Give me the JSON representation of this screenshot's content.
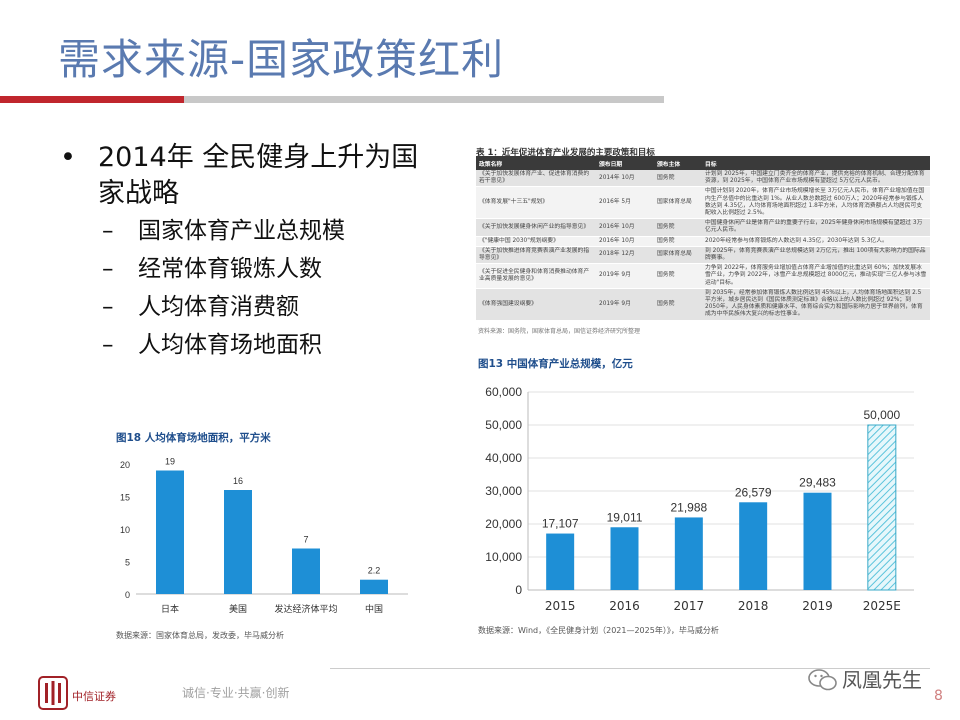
{
  "slide": {
    "title": "需求来源-国家政策红利",
    "page_number": "8"
  },
  "bullets": {
    "main": "2014年 全民健身上升为国家战略",
    "subs": [
      "国家体育产业总规模",
      "经常体育锻炼人数",
      "人均体育消费额",
      "人均体育场地面积"
    ]
  },
  "policy_table": {
    "title": "表 1：近年促进体育产业发展的主要政策和目标",
    "headers": [
      "政策名称",
      "颁布日期",
      "颁布主体",
      "目标"
    ],
    "rows": [
      [
        "《关于加快发展体育产业、促进体育消费的若干意见》",
        "2014年 10月",
        "国务院",
        "计划到 2025年，中国建立门类齐全的体育产业，提供充裕的体育机制、合理分配体育资源，到 2025年，中国体育产业市场规模有望超过 5万亿元人民币。"
      ],
      [
        "《体育发展\"十三五\"规划》",
        "2016年 5月",
        "国家体育总局",
        "中国计划到 2020年，体育产业市场规模增长至 3万亿元人民币，体育产业增加值在国内生产总值中的比重达到 1%。从业人数总数超过 600万人；2020年经常参与锻炼人数达到 4.35亿，人均体育场地面积超过 1.8平方米，人均体育消费额占人均居民可支配收入比例超过 2.5%。"
      ],
      [
        "《关于加快发展健身休闲产业的指导意见》",
        "2016年 10月",
        "国务院",
        "中国健身休闲产业是体育产业的重要子行业，2025年健身休闲市场规模有望超过 3万亿元人民币。"
      ],
      [
        "《\"健康中国 2030\"规划纲要》",
        "2016年 10月",
        "国务院",
        "2020年经常参与体育锻炼的人数达到 4.35亿，2030年达到 5.3亿人。"
      ],
      [
        "《关于加快推进体育竞赛表演产业发展的指导意见》",
        "2018年 12月",
        "国家体育总局",
        "到 2025年，体育竞赛表演产业总规模达到 2万亿元，推出 100项有大影响力的国际品牌赛事。"
      ],
      [
        "《关于促进全民健身和体育消费推动体育产业高质量发展的意见》",
        "2019年 9月",
        "国务院",
        "力争到 2022年，体育服务业增加值占体育产业增加值的比重达到 60%；加快发展冰雪产业，力争到 2022年，冰雪产业总规模超过 8000亿元，推动实现\"三亿人参与冰雪运动\"目标。"
      ],
      [
        "《体育强国建设纲要》",
        "2019年 9月",
        "国务院",
        "到 2035年，经常参加体育锻炼人数比例达到 45%以上，人均体育场地面积达到 2.5平方米，城乡居民达到《国民体质测定标准》合格以上的人数比例超过 92%；到 2050年，人民身体素质和健康水平、体育综合实力和国际影响力居于世界前列，体育成为中华民族伟大复兴的标志性事业。"
      ]
    ],
    "source": "资料来源：国务院，国家体育总局，国信证券经济研究所整理"
  },
  "chart_data": [
    {
      "type": "bar",
      "id": "chart18",
      "title": "图18 人均体育场地面积，平方米",
      "categories": [
        "日本",
        "美国",
        "发达经济体平均",
        "中国"
      ],
      "values": [
        19,
        16,
        7,
        2.2
      ],
      "value_labels": [
        "19",
        "16",
        "7",
        "2.2"
      ],
      "yticks": [
        "0",
        "5",
        "10",
        "15",
        "20"
      ],
      "ylim": [
        0,
        20
      ],
      "bar_color": "#1e8fd6",
      "source": "数据来源：国家体育总局，发改委，毕马威分析"
    },
    {
      "type": "bar",
      "id": "chart13",
      "title": "图13 中国体育产业总规模，亿元",
      "categories": [
        "2015",
        "2016",
        "2017",
        "2018",
        "2019",
        "2025E"
      ],
      "values": [
        17107,
        19011,
        21988,
        26579,
        29483,
        50000
      ],
      "value_labels": [
        "17,107",
        "19,011",
        "21,988",
        "26,579",
        "29,483",
        "50,000"
      ],
      "yticks": [
        "0",
        "10,000",
        "20,000",
        "30,000",
        "40,000",
        "50,000",
        "60,000"
      ],
      "ylim": [
        0,
        60000
      ],
      "bar_color": "#1e8fd6",
      "forecast_fill": "hatched-cyan",
      "source": "数据来源：Wind，《全民健身计划（2021—2025年）》，毕马威分析"
    }
  ],
  "footer": {
    "company_logo_text": "中信证券",
    "slogan": "诚信·专业·共赢·创新",
    "brand": "凤凰先生"
  },
  "colors": {
    "title": "#5a7ab0",
    "accent_red": "#c0262d",
    "bar_blue": "#1e8fd6"
  }
}
